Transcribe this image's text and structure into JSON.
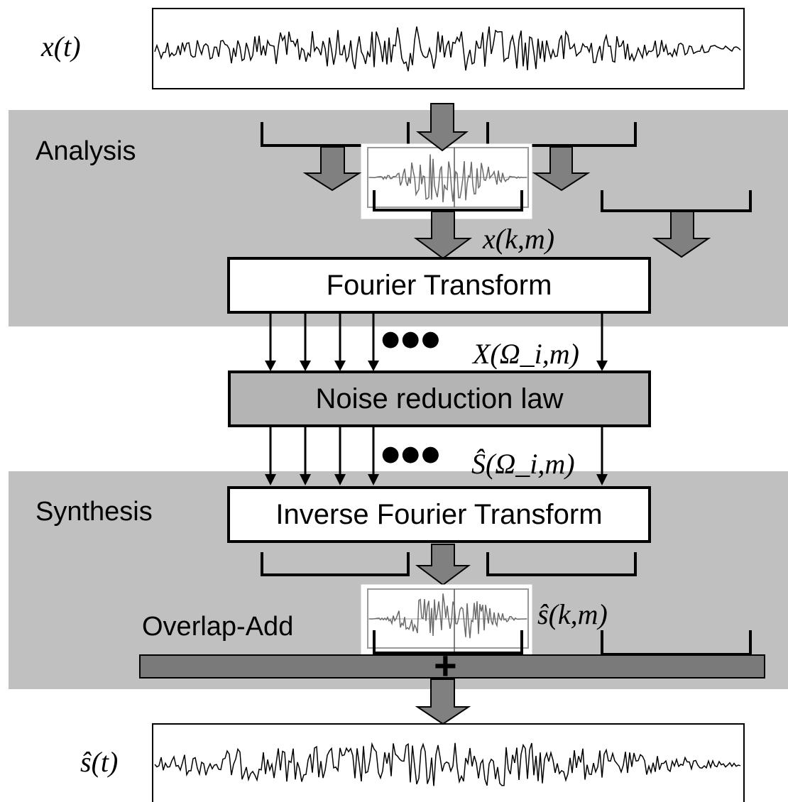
{
  "signals": {
    "input_label": "x(t)",
    "output_label": "ŝ(t)"
  },
  "stages": {
    "analysis_label": "Analysis",
    "synthesis_label": "Synthesis",
    "overlap_add_label": "Overlap-Add"
  },
  "blocks": {
    "fourier_transform": "Fourier Transform",
    "noise_reduction": "Noise reduction law",
    "inverse_fourier_transform": "Inverse Fourier Transform",
    "adder_symbol": "+"
  },
  "annotations": {
    "frame_input": "x(k,m)",
    "spectrum_input": "X(Ω_i,m)",
    "spectrum_estimate": "Ŝ(Ω_i,m)",
    "frame_estimate": "ŝ(k,m)",
    "ellipsis": "●●●"
  },
  "colors": {
    "stage_background": "#c0c0c0",
    "arrow_fill": "#808080",
    "noise_block_fill": "#b4b4b4",
    "adder_bar_fill": "#7a7a7a"
  }
}
